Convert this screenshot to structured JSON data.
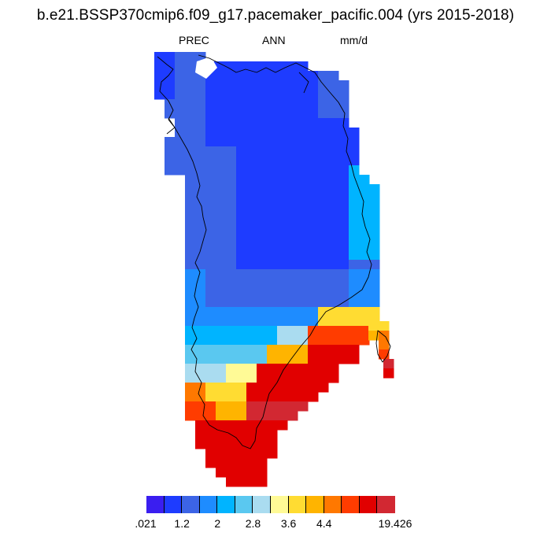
{
  "title": "b.e21.BSSP370cmip6.f09_g17.pacemaker_pacific.004 (yrs 2015-2018)",
  "subtitle": {
    "variable": "PREC",
    "season": "ANN",
    "units": "mm/d"
  },
  "colorbar": {
    "colors": [
      "#3a1ef0",
      "#1e3cff",
      "#3c64e6",
      "#1e8cff",
      "#00b4ff",
      "#5ac8f0",
      "#aadcf0",
      "#fffa96",
      "#ffdc32",
      "#ffb400",
      "#ff7800",
      "#ff3c00",
      "#e10000",
      "#d22832"
    ],
    "labels": [
      ".021",
      "1.2",
      "2",
      "2.8",
      "3.6",
      "4.4",
      "19.426"
    ]
  },
  "map": {
    "region": "Greenland",
    "field": "annual mean precipitation",
    "gradient": "driest in central and north interior (.021-1.2 mm/d), wettest along the southeast coast and southern tip (4.4-19.426 mm/d)"
  }
}
